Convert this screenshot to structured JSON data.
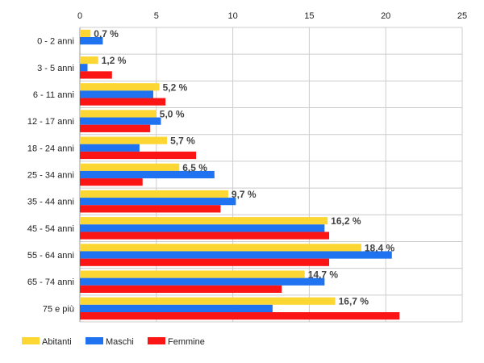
{
  "chart_data": {
    "type": "bar",
    "orientation": "horizontal",
    "categories": [
      "0 - 2 anni",
      "3 - 5 anni",
      "6 - 11 anni",
      "12 - 17 anni",
      "18 - 24 anni",
      "25 - 34 anni",
      "35 - 44 anni",
      "45 - 54 anni",
      "55 - 64 anni",
      "65 - 74 anni",
      "75 e più"
    ],
    "series": [
      {
        "name": "Abitanti",
        "color": "#fcd734",
        "values": [
          0.7,
          1.2,
          5.2,
          5.0,
          5.7,
          6.5,
          9.7,
          16.2,
          18.4,
          14.7,
          16.7
        ]
      },
      {
        "name": "Maschi",
        "color": "#1f73f0",
        "values": [
          1.5,
          0.5,
          4.8,
          5.3,
          3.9,
          8.8,
          10.2,
          16.0,
          20.4,
          16.0,
          12.6
        ]
      },
      {
        "name": "Femmine",
        "color": "#fb1515",
        "values": [
          0.0,
          2.1,
          5.6,
          4.6,
          7.6,
          4.1,
          9.2,
          16.3,
          16.3,
          13.2,
          20.9
        ]
      }
    ],
    "data_labels": [
      "0,7 %",
      "1,2 %",
      "5,2 %",
      "5,0 %",
      "5,7 %",
      "6,5 %",
      "9,7 %",
      "16,2 %",
      "18,4 %",
      "14,7 %",
      "16,7 %"
    ],
    "x_ticks": [
      "0",
      "5",
      "10",
      "15",
      "20",
      "25"
    ],
    "xlim": [
      0,
      25
    ],
    "grid": true,
    "legend_position": "bottom-left"
  }
}
